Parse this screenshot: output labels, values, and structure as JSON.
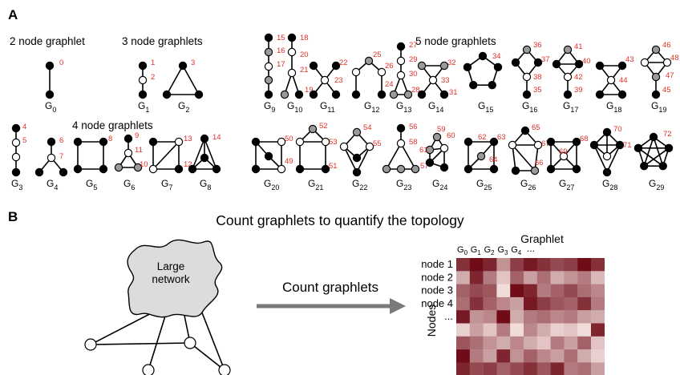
{
  "panel_a": {
    "label": "A",
    "groups": [
      "2 node graphlet",
      "3 node graphlets",
      "4 node graphlets",
      "5 node graphlets"
    ],
    "graphlets": [
      {
        "name": "G",
        "sub": "0",
        "orbits": [
          0
        ]
      },
      {
        "name": "G",
        "sub": "1",
        "orbits": [
          1,
          2
        ]
      },
      {
        "name": "G",
        "sub": "2",
        "orbits": [
          3
        ]
      },
      {
        "name": "G",
        "sub": "3",
        "orbits": [
          4,
          5
        ]
      },
      {
        "name": "G",
        "sub": "4",
        "orbits": [
          6,
          7
        ]
      },
      {
        "name": "G",
        "sub": "5",
        "orbits": [
          8
        ]
      },
      {
        "name": "G",
        "sub": "6",
        "orbits": [
          9,
          10,
          11
        ]
      },
      {
        "name": "G",
        "sub": "7",
        "orbits": [
          12,
          13
        ]
      },
      {
        "name": "G",
        "sub": "8",
        "orbits": [
          14
        ]
      },
      {
        "name": "G",
        "sub": "9",
        "orbits": [
          15,
          16,
          17
        ]
      },
      {
        "name": "G",
        "sub": "10",
        "orbits": [
          18,
          19,
          20,
          21
        ]
      },
      {
        "name": "G",
        "sub": "11",
        "orbits": [
          22,
          23
        ]
      },
      {
        "name": "G",
        "sub": "12",
        "orbits": [
          24,
          25,
          26
        ]
      },
      {
        "name": "G",
        "sub": "13",
        "orbits": [
          27,
          28,
          29,
          30
        ]
      },
      {
        "name": "G",
        "sub": "14",
        "orbits": [
          31,
          32,
          33
        ]
      },
      {
        "name": "G",
        "sub": "15",
        "orbits": [
          34
        ]
      },
      {
        "name": "G",
        "sub": "16",
        "orbits": [
          35,
          36,
          37,
          38
        ]
      },
      {
        "name": "G",
        "sub": "17",
        "orbits": [
          39,
          40,
          41,
          42
        ]
      },
      {
        "name": "G",
        "sub": "18",
        "orbits": [
          43,
          44
        ]
      },
      {
        "name": "G",
        "sub": "19",
        "orbits": [
          45,
          46,
          47,
          48
        ]
      },
      {
        "name": "G",
        "sub": "20",
        "orbits": [
          49,
          50
        ]
      },
      {
        "name": "G",
        "sub": "21",
        "orbits": [
          51,
          52,
          53
        ]
      },
      {
        "name": "G",
        "sub": "22",
        "orbits": [
          54,
          55
        ]
      },
      {
        "name": "G",
        "sub": "23",
        "orbits": [
          56,
          57,
          58
        ]
      },
      {
        "name": "G",
        "sub": "24",
        "orbits": [
          59,
          60,
          61
        ]
      },
      {
        "name": "G",
        "sub": "25",
        "orbits": [
          62,
          63,
          64
        ]
      },
      {
        "name": "G",
        "sub": "26",
        "orbits": [
          65,
          66,
          67
        ]
      },
      {
        "name": "G",
        "sub": "27",
        "orbits": [
          68,
          69
        ]
      },
      {
        "name": "G",
        "sub": "28",
        "orbits": [
          70,
          71
        ]
      },
      {
        "name": "G",
        "sub": "29",
        "orbits": [
          72
        ]
      }
    ]
  },
  "panel_b": {
    "label": "B",
    "title": "Count graphlets to quantify the topology",
    "network_label": [
      "Large",
      "network"
    ],
    "arrow_label": "Count graphlets",
    "heatmap": {
      "x_title": "Graphlet",
      "y_title": "Nodes",
      "columns": [
        {
          "name": "G",
          "sub": "0"
        },
        {
          "name": "G",
          "sub": "1"
        },
        {
          "name": "G",
          "sub": "2"
        },
        {
          "name": "G",
          "sub": "3"
        },
        {
          "name": "G",
          "sub": "4"
        }
      ],
      "columns_more": "...",
      "rows": [
        "node 1",
        "node 2",
        "node 3",
        "node 4",
        "..."
      ],
      "values": [
        [
          0.8,
          0.95,
          0.85,
          0.4,
          0.75,
          0.9,
          0.8,
          0.7,
          0.75,
          0.95,
          0.8
        ],
        [
          0.3,
          0.85,
          0.5,
          0.2,
          0.6,
          0.35,
          0.55,
          0.3,
          0.4,
          0.5,
          0.25
        ],
        [
          0.6,
          0.7,
          0.65,
          0.1,
          0.95,
          0.85,
          0.5,
          0.6,
          0.7,
          0.55,
          0.45
        ],
        [
          0.55,
          0.8,
          0.6,
          0.45,
          0.35,
          0.9,
          0.75,
          0.65,
          0.6,
          0.8,
          0.5
        ],
        [
          0.9,
          0.4,
          0.45,
          0.95,
          0.3,
          0.5,
          0.55,
          0.45,
          0.5,
          0.35,
          0.3
        ],
        [
          0.15,
          0.35,
          0.2,
          0.5,
          0.1,
          0.45,
          0.3,
          0.15,
          0.2,
          0.1,
          0.85
        ],
        [
          0.65,
          0.55,
          0.4,
          0.3,
          0.45,
          0.3,
          0.2,
          0.5,
          0.35,
          0.6,
          0.2
        ],
        [
          0.95,
          0.5,
          0.35,
          0.85,
          0.4,
          0.6,
          0.45,
          0.35,
          0.55,
          0.3,
          0.15
        ],
        [
          0.85,
          0.7,
          0.75,
          0.6,
          0.7,
          0.8,
          0.65,
          0.85,
          0.5,
          0.55,
          0.35
        ]
      ]
    }
  }
}
